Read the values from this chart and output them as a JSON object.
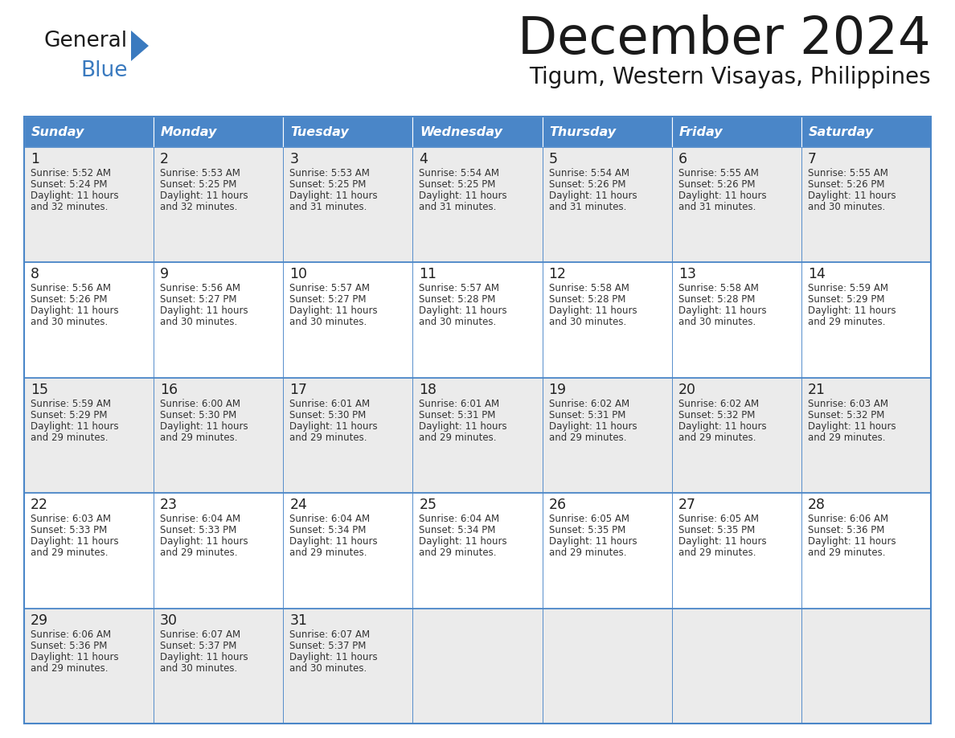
{
  "title": "December 2024",
  "subtitle": "Tigum, Western Visayas, Philippines",
  "header_color": "#4a86c8",
  "header_text_color": "#ffffff",
  "cell_bg_even": "#ebebeb",
  "cell_bg_odd": "#ffffff",
  "border_color": "#4a86c8",
  "text_color": "#333333",
  "day_number_color": "#222222",
  "day_names": [
    "Sunday",
    "Monday",
    "Tuesday",
    "Wednesday",
    "Thursday",
    "Friday",
    "Saturday"
  ],
  "days": [
    {
      "day": 1,
      "col": 0,
      "row": 0,
      "sunrise": "5:52 AM",
      "sunset": "5:24 PM",
      "daylight": "11 hours\nand 32 minutes."
    },
    {
      "day": 2,
      "col": 1,
      "row": 0,
      "sunrise": "5:53 AM",
      "sunset": "5:25 PM",
      "daylight": "11 hours\nand 32 minutes."
    },
    {
      "day": 3,
      "col": 2,
      "row": 0,
      "sunrise": "5:53 AM",
      "sunset": "5:25 PM",
      "daylight": "11 hours\nand 31 minutes."
    },
    {
      "day": 4,
      "col": 3,
      "row": 0,
      "sunrise": "5:54 AM",
      "sunset": "5:25 PM",
      "daylight": "11 hours\nand 31 minutes."
    },
    {
      "day": 5,
      "col": 4,
      "row": 0,
      "sunrise": "5:54 AM",
      "sunset": "5:26 PM",
      "daylight": "11 hours\nand 31 minutes."
    },
    {
      "day": 6,
      "col": 5,
      "row": 0,
      "sunrise": "5:55 AM",
      "sunset": "5:26 PM",
      "daylight": "11 hours\nand 31 minutes."
    },
    {
      "day": 7,
      "col": 6,
      "row": 0,
      "sunrise": "5:55 AM",
      "sunset": "5:26 PM",
      "daylight": "11 hours\nand 30 minutes."
    },
    {
      "day": 8,
      "col": 0,
      "row": 1,
      "sunrise": "5:56 AM",
      "sunset": "5:26 PM",
      "daylight": "11 hours\nand 30 minutes."
    },
    {
      "day": 9,
      "col": 1,
      "row": 1,
      "sunrise": "5:56 AM",
      "sunset": "5:27 PM",
      "daylight": "11 hours\nand 30 minutes."
    },
    {
      "day": 10,
      "col": 2,
      "row": 1,
      "sunrise": "5:57 AM",
      "sunset": "5:27 PM",
      "daylight": "11 hours\nand 30 minutes."
    },
    {
      "day": 11,
      "col": 3,
      "row": 1,
      "sunrise": "5:57 AM",
      "sunset": "5:28 PM",
      "daylight": "11 hours\nand 30 minutes."
    },
    {
      "day": 12,
      "col": 4,
      "row": 1,
      "sunrise": "5:58 AM",
      "sunset": "5:28 PM",
      "daylight": "11 hours\nand 30 minutes."
    },
    {
      "day": 13,
      "col": 5,
      "row": 1,
      "sunrise": "5:58 AM",
      "sunset": "5:28 PM",
      "daylight": "11 hours\nand 30 minutes."
    },
    {
      "day": 14,
      "col": 6,
      "row": 1,
      "sunrise": "5:59 AM",
      "sunset": "5:29 PM",
      "daylight": "11 hours\nand 29 minutes."
    },
    {
      "day": 15,
      "col": 0,
      "row": 2,
      "sunrise": "5:59 AM",
      "sunset": "5:29 PM",
      "daylight": "11 hours\nand 29 minutes."
    },
    {
      "day": 16,
      "col": 1,
      "row": 2,
      "sunrise": "6:00 AM",
      "sunset": "5:30 PM",
      "daylight": "11 hours\nand 29 minutes."
    },
    {
      "day": 17,
      "col": 2,
      "row": 2,
      "sunrise": "6:01 AM",
      "sunset": "5:30 PM",
      "daylight": "11 hours\nand 29 minutes."
    },
    {
      "day": 18,
      "col": 3,
      "row": 2,
      "sunrise": "6:01 AM",
      "sunset": "5:31 PM",
      "daylight": "11 hours\nand 29 minutes."
    },
    {
      "day": 19,
      "col": 4,
      "row": 2,
      "sunrise": "6:02 AM",
      "sunset": "5:31 PM",
      "daylight": "11 hours\nand 29 minutes."
    },
    {
      "day": 20,
      "col": 5,
      "row": 2,
      "sunrise": "6:02 AM",
      "sunset": "5:32 PM",
      "daylight": "11 hours\nand 29 minutes."
    },
    {
      "day": 21,
      "col": 6,
      "row": 2,
      "sunrise": "6:03 AM",
      "sunset": "5:32 PM",
      "daylight": "11 hours\nand 29 minutes."
    },
    {
      "day": 22,
      "col": 0,
      "row": 3,
      "sunrise": "6:03 AM",
      "sunset": "5:33 PM",
      "daylight": "11 hours\nand 29 minutes."
    },
    {
      "day": 23,
      "col": 1,
      "row": 3,
      "sunrise": "6:04 AM",
      "sunset": "5:33 PM",
      "daylight": "11 hours\nand 29 minutes."
    },
    {
      "day": 24,
      "col": 2,
      "row": 3,
      "sunrise": "6:04 AM",
      "sunset": "5:34 PM",
      "daylight": "11 hours\nand 29 minutes."
    },
    {
      "day": 25,
      "col": 3,
      "row": 3,
      "sunrise": "6:04 AM",
      "sunset": "5:34 PM",
      "daylight": "11 hours\nand 29 minutes."
    },
    {
      "day": 26,
      "col": 4,
      "row": 3,
      "sunrise": "6:05 AM",
      "sunset": "5:35 PM",
      "daylight": "11 hours\nand 29 minutes."
    },
    {
      "day": 27,
      "col": 5,
      "row": 3,
      "sunrise": "6:05 AM",
      "sunset": "5:35 PM",
      "daylight": "11 hours\nand 29 minutes."
    },
    {
      "day": 28,
      "col": 6,
      "row": 3,
      "sunrise": "6:06 AM",
      "sunset": "5:36 PM",
      "daylight": "11 hours\nand 29 minutes."
    },
    {
      "day": 29,
      "col": 0,
      "row": 4,
      "sunrise": "6:06 AM",
      "sunset": "5:36 PM",
      "daylight": "11 hours\nand 29 minutes."
    },
    {
      "day": 30,
      "col": 1,
      "row": 4,
      "sunrise": "6:07 AM",
      "sunset": "5:37 PM",
      "daylight": "11 hours\nand 30 minutes."
    },
    {
      "day": 31,
      "col": 2,
      "row": 4,
      "sunrise": "6:07 AM",
      "sunset": "5:37 PM",
      "daylight": "11 hours\nand 30 minutes."
    }
  ],
  "n_rows": 5,
  "n_cols": 7,
  "logo_color_general": "#1a1a1a",
  "logo_color_blue": "#3a7abf",
  "logo_triangle_color": "#3a7abf"
}
